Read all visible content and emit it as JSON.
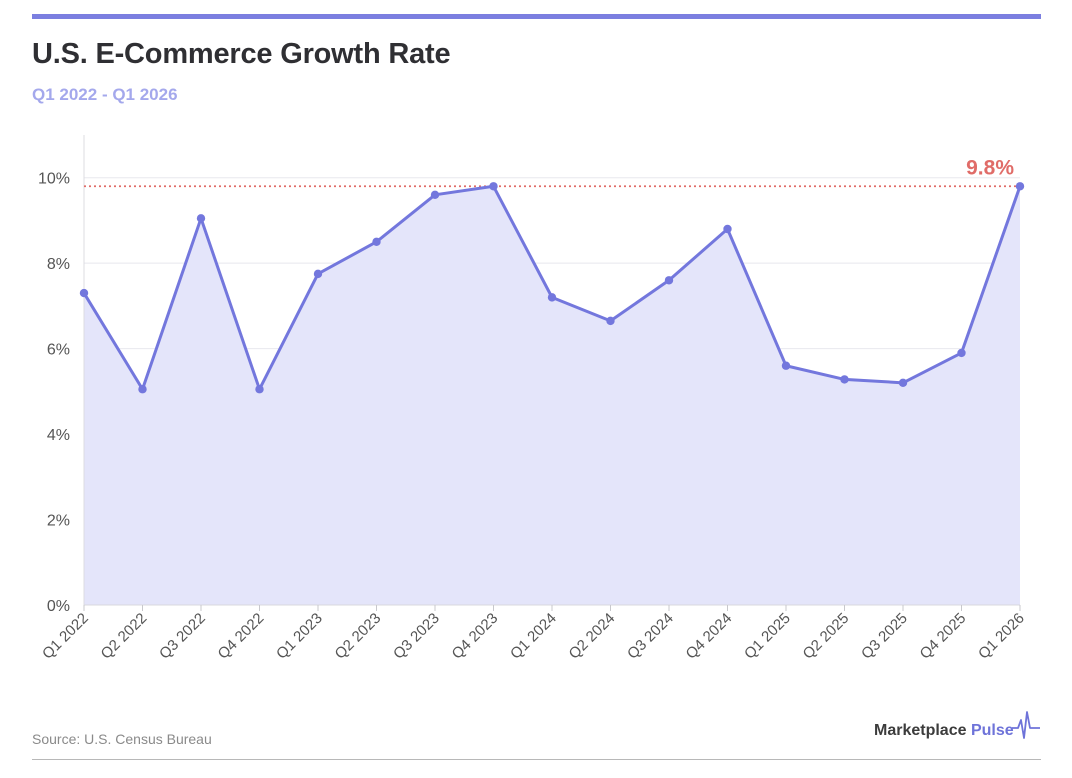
{
  "header": {
    "title": "U.S. E-Commerce Growth Rate",
    "subtitle": "Q1 2022 - Q1 2026"
  },
  "footer": {
    "source": "Source: U.S. Census Bureau",
    "brand_part1": "Marketplace",
    "brand_part2": "Pulse"
  },
  "colors": {
    "accent": "#7b7fe0",
    "line": "#7377dd",
    "area": "#e4e5fa",
    "annotation": "#e06c68"
  },
  "chart_data": {
    "type": "area",
    "title": "U.S. E-Commerce Growth Rate",
    "subtitle": "Q1 2022 - Q1 2026",
    "categories": [
      "Q1 2022",
      "Q2 2022",
      "Q3 2022",
      "Q4 2022",
      "Q1 2023",
      "Q2 2023",
      "Q3 2023",
      "Q4 2023",
      "Q1 2024",
      "Q2 2024",
      "Q3 2024",
      "Q4 2024",
      "Q1 2025",
      "Q2 2025",
      "Q3 2025",
      "Q4 2025",
      "Q1 2026"
    ],
    "series": [
      {
        "values": [
          7.3,
          5.05,
          9.05,
          5.05,
          7.75,
          8.5,
          9.6,
          9.8,
          7.2,
          6.65,
          7.6,
          8.8,
          5.6,
          5.28,
          5.2,
          5.9,
          9.8
        ]
      }
    ],
    "ylim": [
      0,
      11
    ],
    "y_ticks": [
      0,
      2,
      4,
      6,
      8,
      10
    ],
    "y_tick_labels": [
      "0%",
      "2%",
      "4%",
      "6%",
      "8%",
      "10%"
    ],
    "reference_line": {
      "value": 9.8,
      "label": "9.8%"
    },
    "grid": true,
    "xlabel": "",
    "ylabel": ""
  }
}
